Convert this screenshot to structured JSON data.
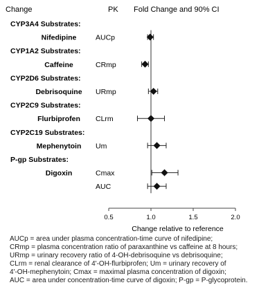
{
  "headers": {
    "change": "Change",
    "pk": "PK",
    "fold_change": "Fold Change and 90% CI"
  },
  "chart_data": {
    "type": "forest",
    "title": "",
    "xlabel": "Change relative to reference",
    "xlim": [
      0.5,
      2.0
    ],
    "xticks": [
      0.5,
      1.0,
      1.5,
      2.0
    ],
    "xtick_labels": [
      "0.5",
      "1.0",
      "1.5",
      "2.0"
    ],
    "reference_line": 1.0,
    "groups": [
      {
        "label": "CYP3A4 Substrates:",
        "rows": [
          {
            "drug": "Nifedipine",
            "pk": "AUCp",
            "estimate": 0.99,
            "lower": 0.96,
            "upper": 1.03
          }
        ]
      },
      {
        "label": "CYP1A2 Substrates:",
        "rows": [
          {
            "drug": "Caffeine",
            "pk": "CRmp",
            "estimate": 0.93,
            "lower": 0.89,
            "upper": 0.97
          }
        ]
      },
      {
        "label": "CYP2D6 Substrates:",
        "rows": [
          {
            "drug": "Debrisoquine",
            "pk": "URmp",
            "estimate": 1.03,
            "lower": 0.97,
            "upper": 1.08
          }
        ]
      },
      {
        "label": "CYP2C9 Substrates:",
        "rows": [
          {
            "drug": "Flurbiprofen",
            "pk": "CLrm",
            "estimate": 1.0,
            "lower": 0.84,
            "upper": 1.16
          }
        ]
      },
      {
        "label": "CYP2C19 Substrates:",
        "rows": [
          {
            "drug": "Mephenytoin",
            "pk": "Um",
            "estimate": 1.07,
            "lower": 0.96,
            "upper": 1.18
          }
        ]
      },
      {
        "label": "P-gp Substrates:",
        "rows": [
          {
            "drug": "Digoxin",
            "pk": "Cmax",
            "estimate": 1.16,
            "lower": 1.01,
            "upper": 1.32
          },
          {
            "drug": "",
            "pk": "AUC",
            "estimate": 1.07,
            "lower": 0.96,
            "upper": 1.18
          }
        ]
      }
    ]
  },
  "footnote": [
    "AUCp = area under plasma concentration-time curve of nifedipine;",
    "CRmp = plasma concentration ratio of paraxanthine vs caffeine at 8 hours;",
    "URmp = urinary recovery ratio of 4-OH-debrisoquine vs debrisoquine;",
    "CLrm = renal clearance of 4'-OH-flurbiprofen; Um = urinary recovery of",
    "4'-OH-mephenytoin; Cmax = maximal plasma concentration of digoxin;",
    "AUC = area under concentration-time curve of digoxin; P-gp = P-glycoprotein."
  ]
}
